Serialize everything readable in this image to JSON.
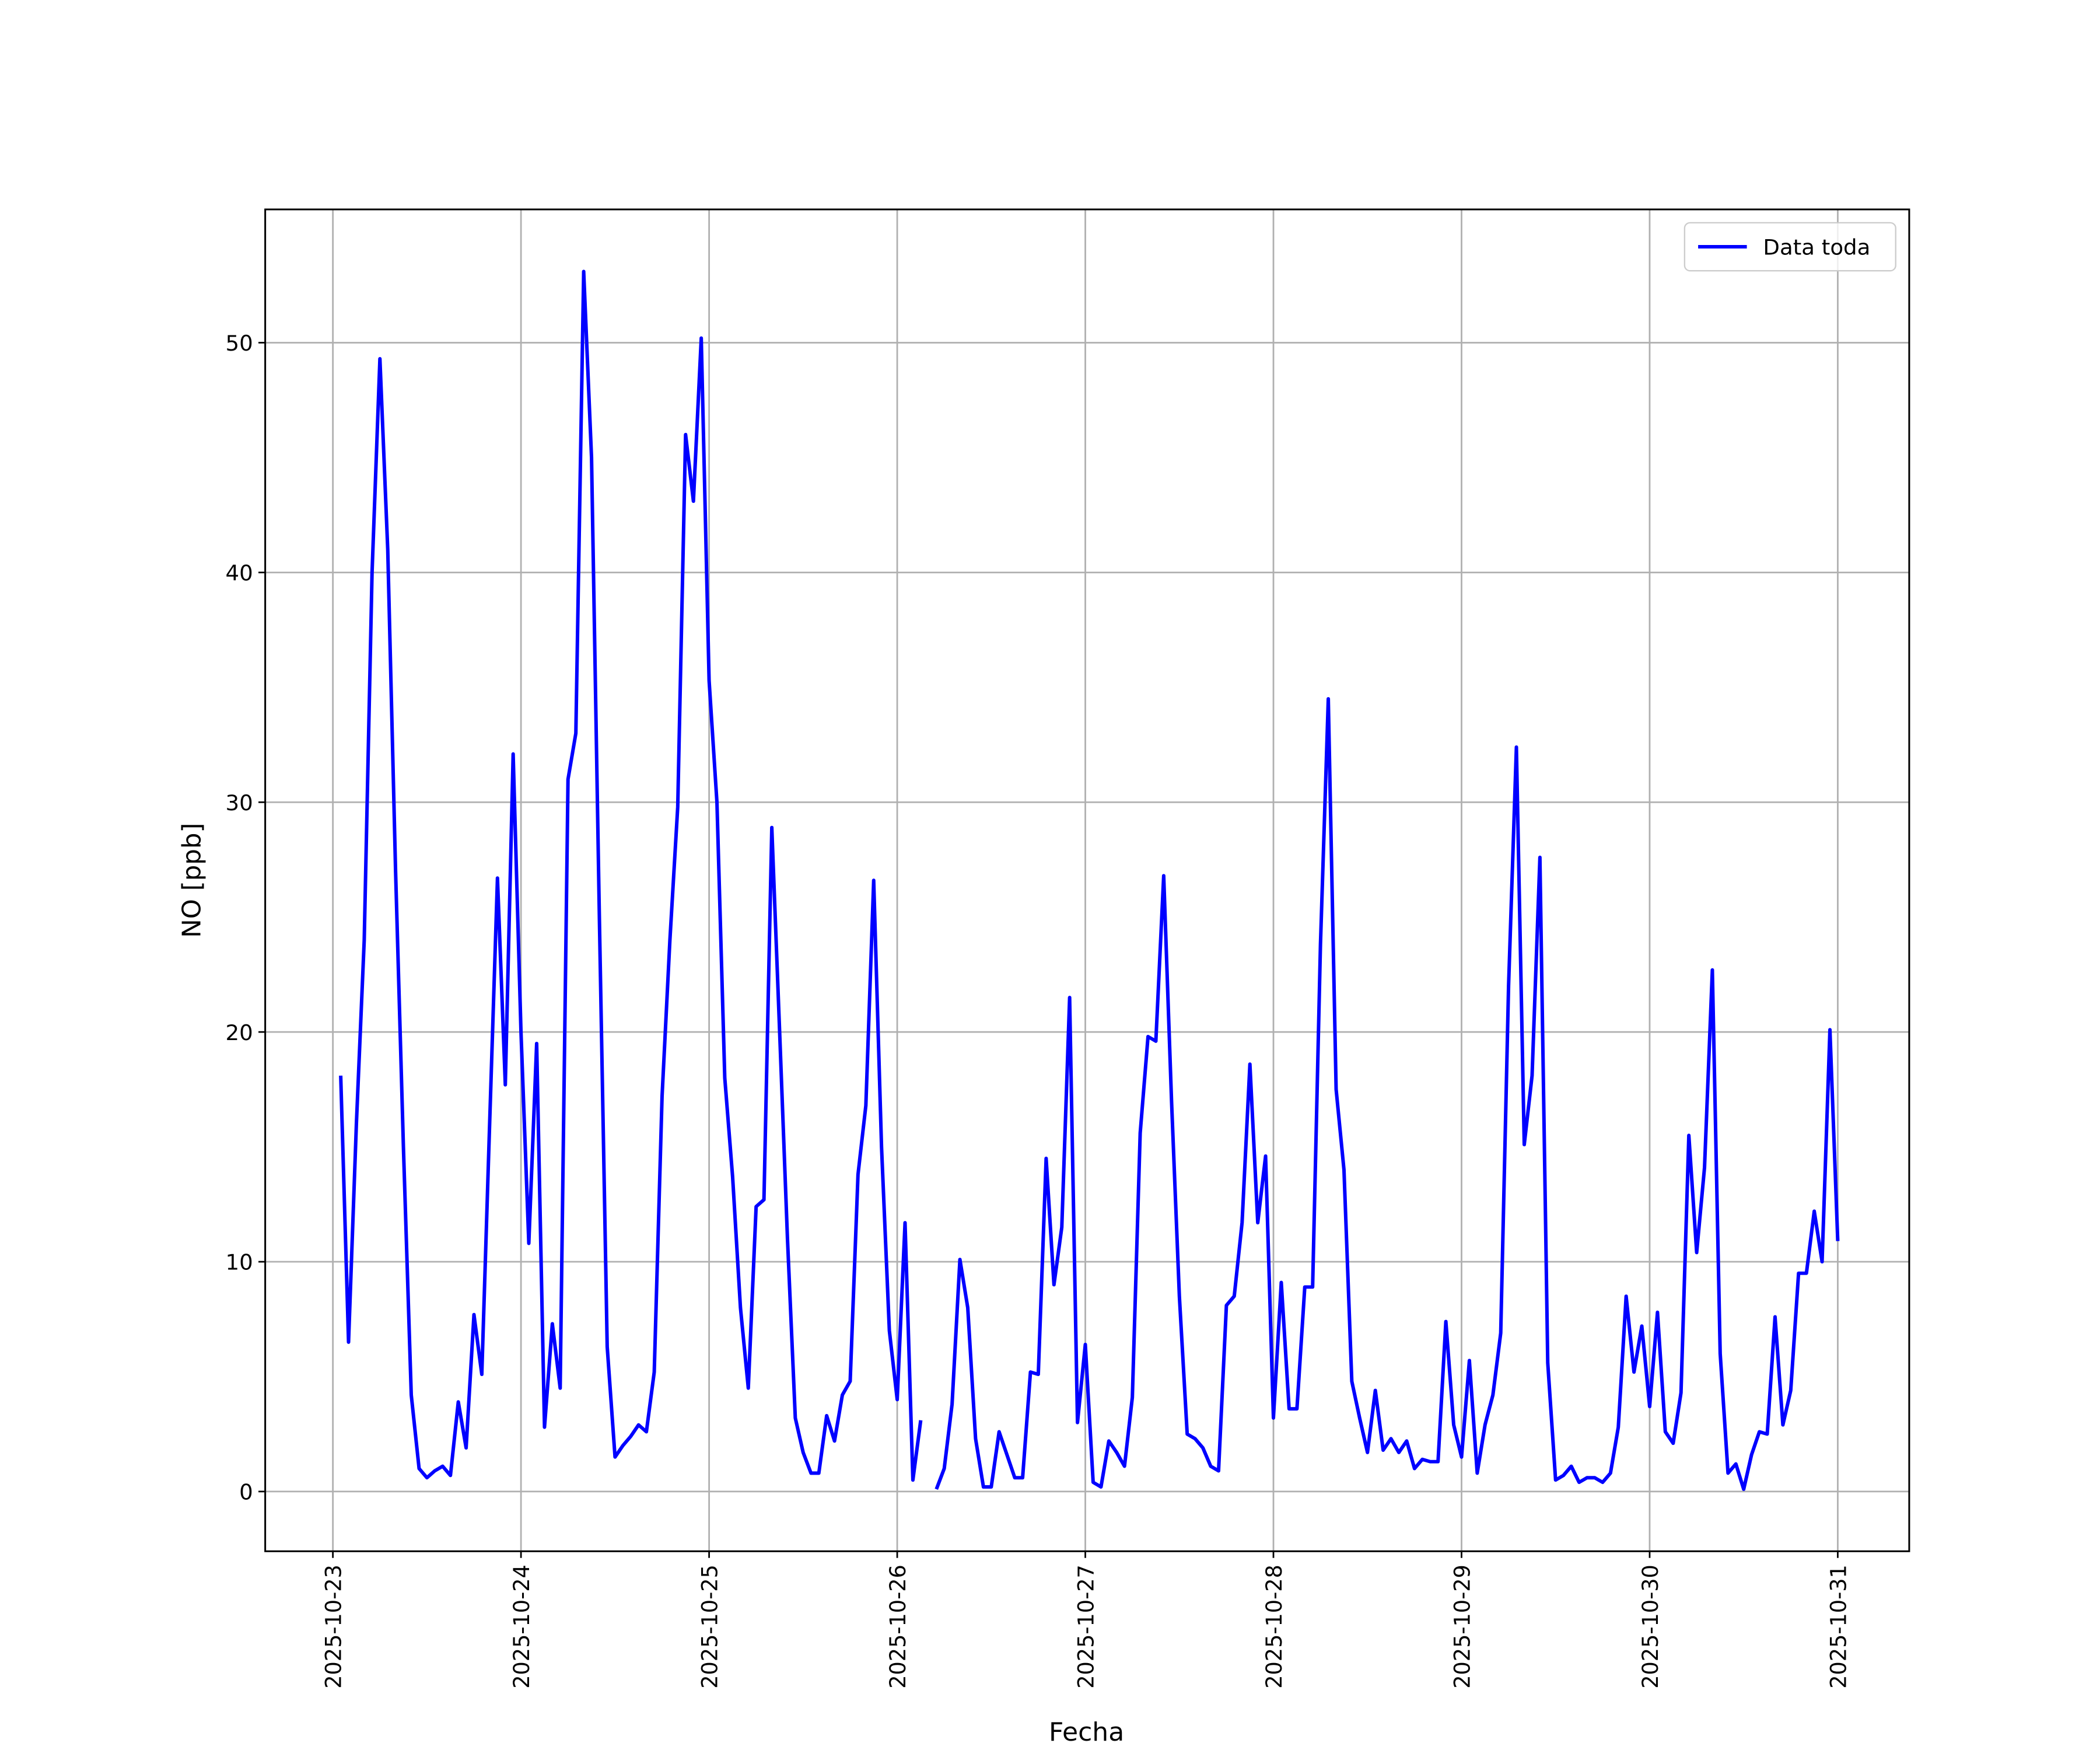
{
  "chart_data": {
    "type": "line",
    "xlabel": "Fecha",
    "ylabel": "NO [ppb]",
    "x": [
      "2025-10-23T01:00",
      "2025-10-23T02:00",
      "2025-10-23T03:00",
      "2025-10-23T04:00",
      "2025-10-23T05:00",
      "2025-10-23T06:00",
      "2025-10-23T07:00",
      "2025-10-23T08:00",
      "2025-10-23T09:00",
      "2025-10-23T10:00",
      "2025-10-23T11:00",
      "2025-10-23T12:00",
      "2025-10-23T13:00",
      "2025-10-23T14:00",
      "2025-10-23T15:00",
      "2025-10-23T16:00",
      "2025-10-23T17:00",
      "2025-10-23T18:00",
      "2025-10-23T19:00",
      "2025-10-23T20:00",
      "2025-10-23T21:00",
      "2025-10-23T22:00",
      "2025-10-23T23:00",
      "2025-10-24T00:00",
      "2025-10-24T01:00",
      "2025-10-24T02:00",
      "2025-10-24T03:00",
      "2025-10-24T04:00",
      "2025-10-24T05:00",
      "2025-10-24T06:00",
      "2025-10-24T07:00",
      "2025-10-24T08:00",
      "2025-10-24T09:00",
      "2025-10-24T10:00",
      "2025-10-24T11:00",
      "2025-10-24T12:00",
      "2025-10-24T13:00",
      "2025-10-24T14:00",
      "2025-10-24T15:00",
      "2025-10-24T16:00",
      "2025-10-24T17:00",
      "2025-10-24T18:00",
      "2025-10-24T19:00",
      "2025-10-24T20:00",
      "2025-10-24T21:00",
      "2025-10-24T22:00",
      "2025-10-24T23:00",
      "2025-10-25T00:00",
      "2025-10-25T01:00",
      "2025-10-25T02:00",
      "2025-10-25T03:00",
      "2025-10-25T04:00",
      "2025-10-25T05:00",
      "2025-10-25T06:00",
      "2025-10-25T07:00",
      "2025-10-25T08:00",
      "2025-10-25T09:00",
      "2025-10-25T10:00",
      "2025-10-25T11:00",
      "2025-10-25T12:00",
      "2025-10-25T13:00",
      "2025-10-25T14:00",
      "2025-10-25T15:00",
      "2025-10-25T16:00",
      "2025-10-25T17:00",
      "2025-10-25T18:00",
      "2025-10-25T19:00",
      "2025-10-25T20:00",
      "2025-10-25T21:00",
      "2025-10-25T22:00",
      "2025-10-25T23:00",
      "2025-10-26T00:00",
      "2025-10-26T01:00",
      "2025-10-26T02:00",
      "2025-10-26T03:00",
      "2025-10-26T04:00",
      "2025-10-26T05:00",
      "2025-10-26T06:00",
      "2025-10-26T07:00",
      "2025-10-26T08:00",
      "2025-10-26T09:00",
      "2025-10-26T10:00",
      "2025-10-26T11:00",
      "2025-10-26T12:00",
      "2025-10-26T13:00",
      "2025-10-26T14:00",
      "2025-10-26T15:00",
      "2025-10-26T16:00",
      "2025-10-26T17:00",
      "2025-10-26T18:00",
      "2025-10-26T19:00",
      "2025-10-26T20:00",
      "2025-10-26T21:00",
      "2025-10-26T22:00",
      "2025-10-26T23:00",
      "2025-10-27T00:00",
      "2025-10-27T01:00",
      "2025-10-27T02:00",
      "2025-10-27T03:00",
      "2025-10-27T04:00",
      "2025-10-27T05:00",
      "2025-10-27T06:00",
      "2025-10-27T07:00",
      "2025-10-27T08:00",
      "2025-10-27T09:00",
      "2025-10-27T10:00",
      "2025-10-27T11:00",
      "2025-10-27T12:00",
      "2025-10-27T13:00",
      "2025-10-27T14:00",
      "2025-10-27T15:00",
      "2025-10-27T16:00",
      "2025-10-27T17:00",
      "2025-10-27T18:00",
      "2025-10-27T19:00",
      "2025-10-27T20:00",
      "2025-10-27T21:00",
      "2025-10-27T22:00",
      "2025-10-27T23:00",
      "2025-10-28T00:00",
      "2025-10-28T01:00",
      "2025-10-28T02:00",
      "2025-10-28T03:00",
      "2025-10-28T04:00",
      "2025-10-28T05:00",
      "2025-10-28T06:00",
      "2025-10-28T07:00",
      "2025-10-28T08:00",
      "2025-10-28T09:00",
      "2025-10-28T10:00",
      "2025-10-28T11:00",
      "2025-10-28T12:00",
      "2025-10-28T13:00",
      "2025-10-28T14:00",
      "2025-10-28T15:00",
      "2025-10-28T16:00",
      "2025-10-28T17:00",
      "2025-10-28T18:00",
      "2025-10-28T19:00",
      "2025-10-28T20:00",
      "2025-10-28T21:00",
      "2025-10-28T22:00",
      "2025-10-28T23:00",
      "2025-10-29T00:00",
      "2025-10-29T01:00",
      "2025-10-29T02:00",
      "2025-10-29T03:00",
      "2025-10-29T04:00",
      "2025-10-29T05:00",
      "2025-10-29T06:00",
      "2025-10-29T07:00",
      "2025-10-29T08:00",
      "2025-10-29T09:00",
      "2025-10-29T10:00",
      "2025-10-29T11:00",
      "2025-10-29T12:00",
      "2025-10-29T13:00",
      "2025-10-29T14:00",
      "2025-10-29T15:00",
      "2025-10-29T16:00",
      "2025-10-29T17:00",
      "2025-10-29T18:00",
      "2025-10-29T19:00",
      "2025-10-29T20:00",
      "2025-10-29T21:00",
      "2025-10-29T22:00",
      "2025-10-29T23:00",
      "2025-10-30T00:00",
      "2025-10-30T01:00",
      "2025-10-30T02:00",
      "2025-10-30T03:00",
      "2025-10-30T04:00",
      "2025-10-30T05:00",
      "2025-10-30T06:00",
      "2025-10-30T07:00",
      "2025-10-30T08:00",
      "2025-10-30T09:00",
      "2025-10-30T10:00",
      "2025-10-30T11:00",
      "2025-10-30T12:00",
      "2025-10-30T13:00",
      "2025-10-30T14:00",
      "2025-10-30T15:00",
      "2025-10-30T16:00",
      "2025-10-30T17:00",
      "2025-10-30T18:00",
      "2025-10-30T19:00",
      "2025-10-30T20:00",
      "2025-10-30T21:00",
      "2025-10-30T22:00",
      "2025-10-30T23:00",
      "2025-10-31T00:00"
    ],
    "series": [
      {
        "name": "Data toda",
        "color": "#0000ff",
        "values": [
          18.1,
          6.5,
          16,
          24,
          40,
          49.3,
          41,
          27,
          15,
          4.2,
          1.0,
          0.6,
          0.9,
          1.1,
          0.7,
          3.9,
          1.9,
          7.7,
          5.1,
          16,
          26.7,
          17.7,
          32.1,
          20,
          10.8,
          19.5,
          2.8,
          7.3,
          4.5,
          31,
          33,
          53.1,
          45,
          25,
          6.3,
          1.5,
          2.0,
          2.4,
          2.9,
          2.6,
          5.2,
          17.2,
          24,
          29.8,
          46,
          43.1,
          50.2,
          35.3,
          30,
          18,
          13.7,
          8,
          4.5,
          12.4,
          12.7,
          28.9,
          20,
          11,
          3.2,
          1.7,
          0.8,
          0.8,
          3.3,
          2.2,
          4.2,
          4.8,
          13.8,
          16.8,
          26.6,
          15,
          7,
          4.0,
          11.7,
          0.5,
          3.1,
          null,
          0.1,
          1.0,
          3.8,
          10.1,
          8,
          2.3,
          0.2,
          0.2,
          2.6,
          1.6,
          0.6,
          0.6,
          5.2,
          5.1,
          14.5,
          9.0,
          11.5,
          21.5,
          3.0,
          6.4,
          0.4,
          0.2,
          2.2,
          1.7,
          1.1,
          4.1,
          15.6,
          19.8,
          19.6,
          26.8,
          17,
          8.5,
          2.5,
          2.3,
          1.9,
          1.1,
          0.9,
          8.1,
          8.5,
          11.7,
          18.6,
          11.7,
          14.6,
          3.2,
          9.1,
          3.6,
          3.6,
          8.9,
          8.9,
          23.8,
          34.5,
          17.5,
          14,
          4.8,
          3.2,
          1.7,
          4.4,
          1.8,
          2.3,
          1.7,
          2.2,
          1.0,
          1.4,
          1.3,
          1.3,
          7.4,
          2.9,
          1.5,
          5.7,
          0.8,
          2.9,
          4.2,
          6.9,
          22,
          32.4,
          15.1,
          18.1,
          27.6,
          5.6,
          0.5,
          0.7,
          1.1,
          0.4,
          0.6,
          0.6,
          0.4,
          0.8,
          2.8,
          8.5,
          5.2,
          7.2,
          3.7,
          7.8,
          2.6,
          2.1,
          4.3,
          15.5,
          10.4,
          14.1,
          22.7,
          6,
          0.8,
          1.2,
          0.1,
          1.6,
          2.6,
          2.5,
          7.6,
          2.9,
          4.4,
          9.5,
          9.5,
          12.2,
          10,
          20.1,
          10.9
        ]
      }
    ],
    "xlim": [
      "2025-10-22T15:22",
      "2025-10-31T09:07"
    ],
    "xticks": [
      "2025-10-23",
      "2025-10-24",
      "2025-10-25",
      "2025-10-26",
      "2025-10-27",
      "2025-10-28",
      "2025-10-29",
      "2025-10-30",
      "2025-10-31"
    ],
    "ylim": [
      -2.6,
      55.8
    ],
    "yticks": [
      0,
      10,
      20,
      30,
      40,
      50
    ],
    "grid": true,
    "legend": "upper right"
  }
}
